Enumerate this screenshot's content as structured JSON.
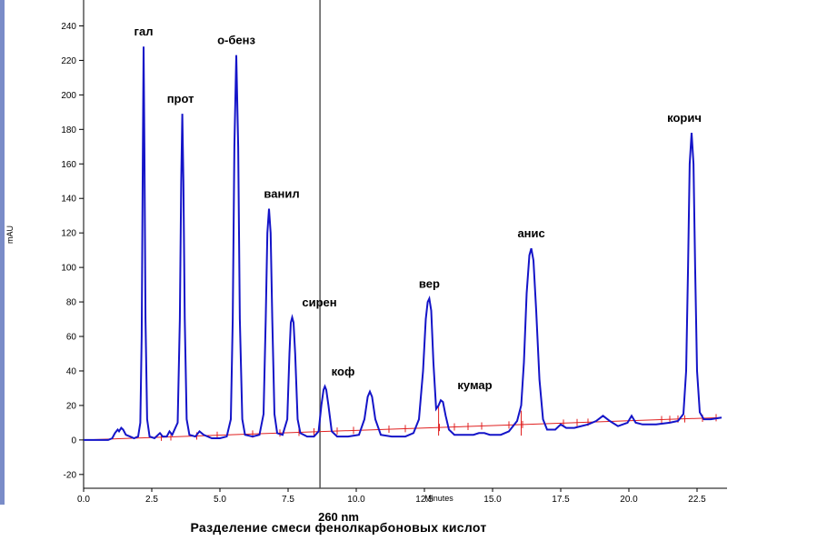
{
  "caption": {
    "wavelength": "260 nm",
    "title": "Разделение смеси фенолкарбоновых кислот"
  },
  "colors": {
    "trace": "#1414c8",
    "baseline": "#e02020",
    "marker": "#555555",
    "left_strip": "#7a8cc8"
  },
  "chart_data": {
    "type": "line",
    "xlabel": "Minutes",
    "ylabel": "mAU",
    "xlim": [
      0,
      23.6
    ],
    "ylim": [
      -28,
      255
    ],
    "x_ticks": [
      "0.0",
      "2.5",
      "5.0",
      "7.5",
      "10.0",
      "12.5",
      "15.0",
      "17.5",
      "20.0",
      "22.5"
    ],
    "x_tick_values": [
      0,
      2.5,
      5,
      7.5,
      10,
      12.5,
      15,
      17.5,
      20,
      22.5
    ],
    "y_ticks": [
      "-20",
      "0",
      "20",
      "40",
      "60",
      "80",
      "100",
      "120",
      "140",
      "160",
      "180",
      "200",
      "220",
      "240"
    ],
    "y_tick_values": [
      -20,
      0,
      20,
      40,
      60,
      80,
      100,
      120,
      140,
      160,
      180,
      200,
      220,
      240
    ],
    "marker_line_x": 8.67,
    "baseline": [
      [
        0,
        0
      ],
      [
        23.4,
        13
      ]
    ],
    "peaks": [
      {
        "label": "гал",
        "rt": 2.2,
        "height": 228
      },
      {
        "label": "прот",
        "rt": 3.62,
        "height": 189
      },
      {
        "label": "о-бенз",
        "rt": 5.6,
        "height": 223
      },
      {
        "label": "ванил",
        "rt": 6.8,
        "height": 134
      },
      {
        "label": "сирен",
        "rt": 7.65,
        "height": 71
      },
      {
        "label": "коф",
        "rt": 8.85,
        "height": 31
      },
      {
        "label": "",
        "rt": 10.5,
        "height": 28
      },
      {
        "label": "вер",
        "rt": 12.68,
        "height": 82
      },
      {
        "label": "кумар",
        "rt": 13.15,
        "height": 23
      },
      {
        "label": "анис",
        "rt": 16.42,
        "height": 111
      },
      {
        "label": "корич",
        "rt": 22.3,
        "height": 178
      }
    ],
    "series": [
      {
        "points": [
          [
            0.0,
            0
          ],
          [
            0.9,
            0
          ],
          [
            1.05,
            1
          ],
          [
            1.15,
            4
          ],
          [
            1.25,
            6
          ],
          [
            1.3,
            5
          ],
          [
            1.38,
            7
          ],
          [
            1.45,
            6
          ],
          [
            1.55,
            3
          ],
          [
            1.7,
            2
          ],
          [
            1.85,
            1
          ],
          [
            2.0,
            2
          ],
          [
            2.08,
            10
          ],
          [
            2.13,
            60
          ],
          [
            2.17,
            160
          ],
          [
            2.2,
            228
          ],
          [
            2.23,
            170
          ],
          [
            2.27,
            70
          ],
          [
            2.33,
            12
          ],
          [
            2.42,
            2
          ],
          [
            2.6,
            1
          ],
          [
            2.8,
            4
          ],
          [
            2.9,
            2
          ],
          [
            3.05,
            2
          ],
          [
            3.15,
            5
          ],
          [
            3.25,
            3
          ],
          [
            3.45,
            10
          ],
          [
            3.53,
            70
          ],
          [
            3.58,
            150
          ],
          [
            3.62,
            189
          ],
          [
            3.66,
            150
          ],
          [
            3.71,
            70
          ],
          [
            3.78,
            12
          ],
          [
            3.88,
            3
          ],
          [
            4.1,
            2
          ],
          [
            4.25,
            5
          ],
          [
            4.4,
            3
          ],
          [
            4.7,
            1
          ],
          [
            5.0,
            1
          ],
          [
            5.25,
            2
          ],
          [
            5.4,
            12
          ],
          [
            5.47,
            70
          ],
          [
            5.53,
            170
          ],
          [
            5.6,
            223
          ],
          [
            5.67,
            170
          ],
          [
            5.73,
            70
          ],
          [
            5.82,
            12
          ],
          [
            5.92,
            3
          ],
          [
            6.2,
            2
          ],
          [
            6.45,
            3
          ],
          [
            6.6,
            15
          ],
          [
            6.68,
            70
          ],
          [
            6.74,
            120
          ],
          [
            6.8,
            134
          ],
          [
            6.86,
            120
          ],
          [
            6.92,
            70
          ],
          [
            7.0,
            15
          ],
          [
            7.1,
            4
          ],
          [
            7.3,
            3
          ],
          [
            7.47,
            12
          ],
          [
            7.55,
            50
          ],
          [
            7.6,
            68
          ],
          [
            7.65,
            71
          ],
          [
            7.7,
            68
          ],
          [
            7.76,
            50
          ],
          [
            7.85,
            12
          ],
          [
            7.95,
            4
          ],
          [
            8.2,
            2
          ],
          [
            8.45,
            2
          ],
          [
            8.62,
            5
          ],
          [
            8.72,
            20
          ],
          [
            8.8,
            29
          ],
          [
            8.85,
            31
          ],
          [
            8.9,
            29
          ],
          [
            8.98,
            20
          ],
          [
            9.1,
            5
          ],
          [
            9.3,
            2
          ],
          [
            9.7,
            2
          ],
          [
            10.1,
            3
          ],
          [
            10.3,
            12
          ],
          [
            10.42,
            25
          ],
          [
            10.5,
            28
          ],
          [
            10.58,
            25
          ],
          [
            10.7,
            12
          ],
          [
            10.9,
            3
          ],
          [
            11.3,
            2
          ],
          [
            11.8,
            2
          ],
          [
            12.1,
            4
          ],
          [
            12.3,
            12
          ],
          [
            12.45,
            40
          ],
          [
            12.55,
            70
          ],
          [
            12.62,
            80
          ],
          [
            12.68,
            82
          ],
          [
            12.75,
            75
          ],
          [
            12.83,
            45
          ],
          [
            12.93,
            18
          ],
          [
            13.02,
            20
          ],
          [
            13.1,
            23
          ],
          [
            13.18,
            22
          ],
          [
            13.28,
            14
          ],
          [
            13.4,
            6
          ],
          [
            13.6,
            3
          ],
          [
            14.0,
            3
          ],
          [
            14.3,
            3
          ],
          [
            14.5,
            4
          ],
          [
            14.7,
            4
          ],
          [
            14.9,
            3
          ],
          [
            15.3,
            3
          ],
          [
            15.6,
            5
          ],
          [
            15.9,
            11
          ],
          [
            16.05,
            20
          ],
          [
            16.15,
            45
          ],
          [
            16.25,
            85
          ],
          [
            16.35,
            107
          ],
          [
            16.42,
            111
          ],
          [
            16.5,
            104
          ],
          [
            16.6,
            75
          ],
          [
            16.72,
            35
          ],
          [
            16.85,
            12
          ],
          [
            17.0,
            6
          ],
          [
            17.3,
            6
          ],
          [
            17.5,
            9
          ],
          [
            17.7,
            7
          ],
          [
            18.0,
            7
          ],
          [
            18.5,
            9
          ],
          [
            18.8,
            11
          ],
          [
            19.05,
            14
          ],
          [
            19.3,
            11
          ],
          [
            19.6,
            8
          ],
          [
            19.95,
            10
          ],
          [
            20.1,
            14
          ],
          [
            20.25,
            10
          ],
          [
            20.5,
            9
          ],
          [
            21.0,
            9
          ],
          [
            21.5,
            10
          ],
          [
            21.8,
            11
          ],
          [
            22.0,
            15
          ],
          [
            22.1,
            40
          ],
          [
            22.17,
            100
          ],
          [
            22.23,
            160
          ],
          [
            22.3,
            178
          ],
          [
            22.37,
            160
          ],
          [
            22.43,
            100
          ],
          [
            22.5,
            40
          ],
          [
            22.6,
            16
          ],
          [
            22.75,
            12
          ],
          [
            23.0,
            12
          ],
          [
            23.4,
            13
          ]
        ]
      }
    ]
  }
}
